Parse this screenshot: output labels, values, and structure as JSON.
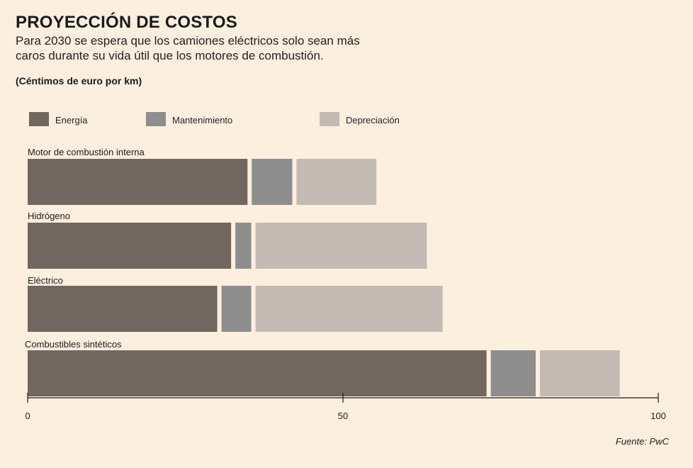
{
  "header": {
    "title": "PROYECCIÓN DE COSTOS",
    "subtitle": "Para 2030 se espera que los camiones eléctricos solo sean más caros durante su vida útil que los motores de combustión.",
    "unit": "(Céntimos de euro por km)"
  },
  "footer": {
    "source": "Fuente: PwC"
  },
  "chart_data": {
    "type": "bar",
    "orientation": "horizontal",
    "stacked": true,
    "categories": [
      "Motor de combustión interna",
      "Hidrógeno",
      "Eléctrico",
      "Combustibles sintéticos"
    ],
    "series": [
      {
        "name": "Energía",
        "color": "#716760",
        "values": [
          35.2,
          32.6,
          30.4,
          73.1
        ]
      },
      {
        "name": "Mantenimiento",
        "color": "#8e8e8f",
        "values": [
          7.1,
          3.2,
          5.4,
          7.8
        ]
      },
      {
        "name": "Depreciación",
        "color": "#c3bab4",
        "values": [
          13.0,
          27.5,
          30.0,
          13.0
        ]
      }
    ],
    "xlim": [
      0,
      100
    ],
    "xticks": [
      0,
      50,
      100
    ],
    "legend_position": "top",
    "grid": false
  }
}
